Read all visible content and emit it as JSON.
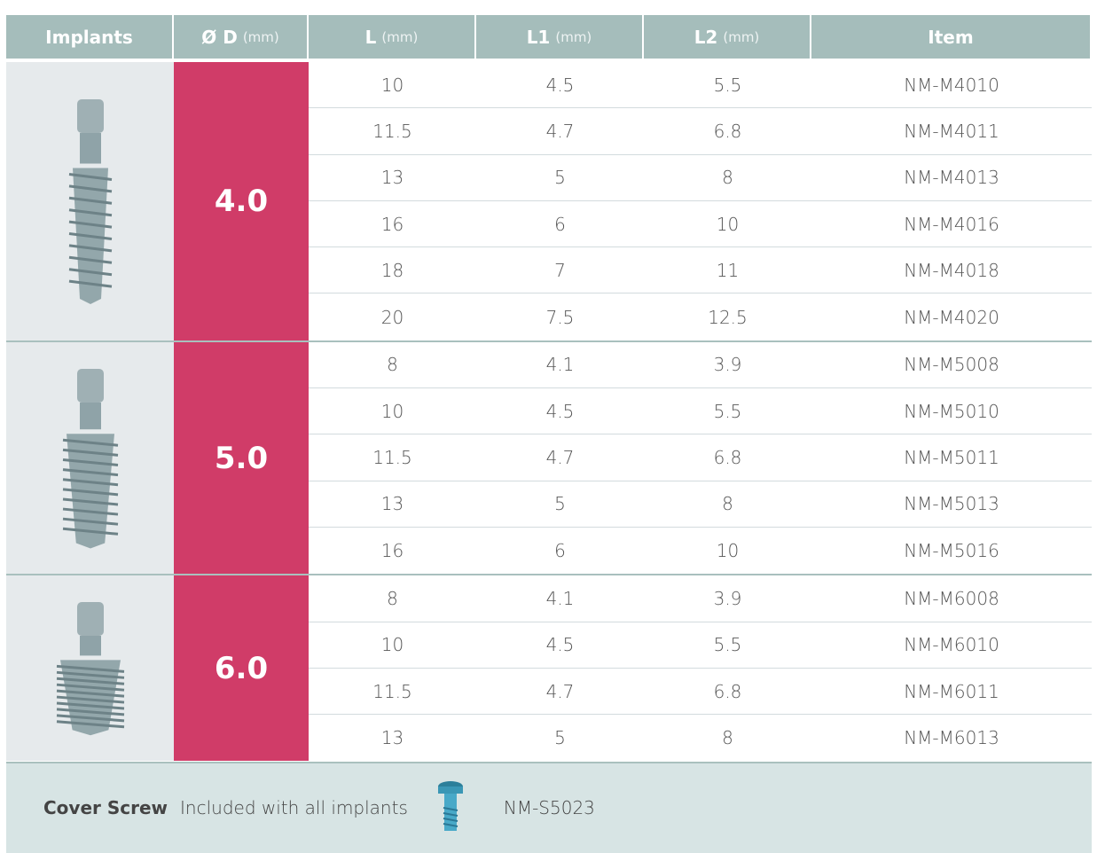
{
  "table": {
    "columns": [
      {
        "name": "Implants"
      },
      {
        "name": "Ø D",
        "unit": "(mm)"
      },
      {
        "name": "L",
        "unit": "(mm)"
      },
      {
        "name": "L1",
        "unit": "(mm)"
      },
      {
        "name": "L2",
        "unit": "(mm)"
      },
      {
        "name": "Item"
      }
    ],
    "groups": [
      {
        "diameter": "4.0",
        "rows": [
          [
            "10",
            "4.5",
            "5.5",
            "NM-M4010"
          ],
          [
            "11.5",
            "4.7",
            "6.8",
            "NM-M4011"
          ],
          [
            "13",
            "5",
            "8",
            "NM-M4013"
          ],
          [
            "16",
            "6",
            "10",
            "NM-M4016"
          ],
          [
            "18",
            "7",
            "11",
            "NM-M4018"
          ],
          [
            "20",
            "7.5",
            "12.5",
            "NM-M4020"
          ]
        ]
      },
      {
        "diameter": "5.0",
        "rows": [
          [
            "8",
            "4.1",
            "3.9",
            "NM-M5008"
          ],
          [
            "10",
            "4.5",
            "5.5",
            "NM-M5010"
          ],
          [
            "11.5",
            "4.7",
            "6.8",
            "NM-M5011"
          ],
          [
            "13",
            "5",
            "8",
            "NM-M5013"
          ],
          [
            "16",
            "6",
            "10",
            "NM-M5016"
          ]
        ]
      },
      {
        "diameter": "6.0",
        "rows": [
          [
            "8",
            "4.1",
            "3.9",
            "NM-M6008"
          ],
          [
            "10",
            "4.5",
            "5.5",
            "NM-M6010"
          ],
          [
            "11.5",
            "4.7",
            "6.8",
            "NM-M6011"
          ],
          [
            "13",
            "5",
            "8",
            "NM-M6013"
          ]
        ]
      }
    ]
  },
  "footer": {
    "label": "Cover Screw",
    "text": "Included with all implants",
    "item": "NM-S5023"
  }
}
